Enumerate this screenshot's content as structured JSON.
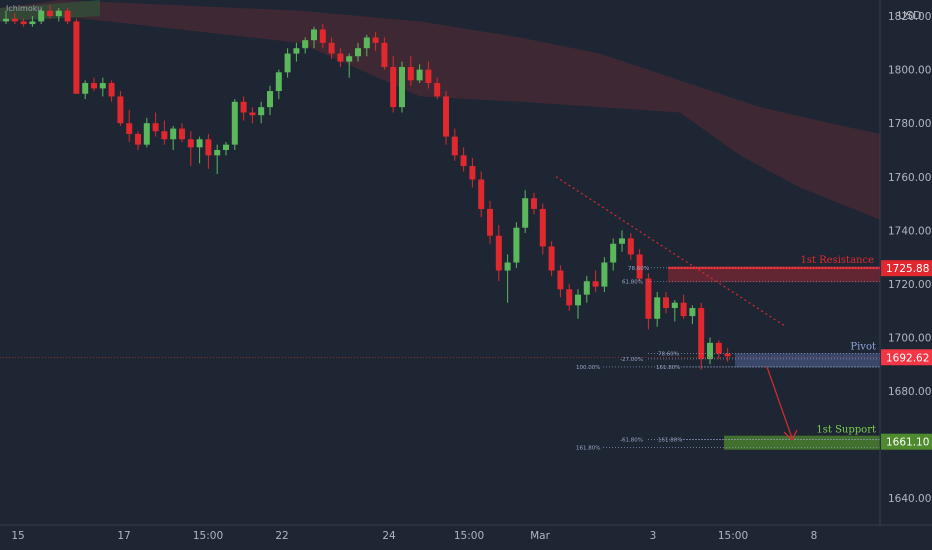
{
  "indicator_label": "Ichimoku",
  "chart_data": {
    "type": "candlestick",
    "currency": "USD",
    "ylim": [
      1630,
      1826
    ],
    "y_ticks": [
      1640,
      1660,
      1680,
      1700,
      1720,
      1740,
      1760,
      1780,
      1800,
      1820
    ],
    "x_ticks": [
      "15",
      "17",
      "15:00",
      "22",
      "24",
      "15:00",
      "Mar",
      "3",
      "15:00",
      "8"
    ],
    "candles": [
      [
        1818,
        1822,
        1817,
        1819
      ],
      [
        1819,
        1821,
        1817,
        1818
      ],
      [
        1818,
        1819,
        1816,
        1817
      ],
      [
        1817,
        1820,
        1816,
        1818
      ],
      [
        1818,
        1823,
        1817,
        1822
      ],
      [
        1822,
        1824,
        1819,
        1820
      ],
      [
        1820,
        1823,
        1818,
        1822
      ],
      [
        1822,
        1823,
        1817,
        1818
      ],
      [
        1818,
        1819,
        1791,
        1791
      ],
      [
        1791,
        1796,
        1789,
        1795
      ],
      [
        1795,
        1797,
        1792,
        1793
      ],
      [
        1793,
        1797,
        1790,
        1795
      ],
      [
        1795,
        1796,
        1788,
        1790
      ],
      [
        1790,
        1792,
        1779,
        1780
      ],
      [
        1780,
        1785,
        1773,
        1776
      ],
      [
        1776,
        1777,
        1770,
        1772
      ],
      [
        1772,
        1782,
        1771,
        1780
      ],
      [
        1780,
        1784,
        1775,
        1777
      ],
      [
        1777,
        1781,
        1772,
        1774
      ],
      [
        1774,
        1779,
        1770,
        1778
      ],
      [
        1778,
        1780,
        1773,
        1774
      ],
      [
        1774,
        1777,
        1764,
        1771
      ],
      [
        1771,
        1775,
        1765,
        1774
      ],
      [
        1774,
        1776,
        1763,
        1768
      ],
      [
        1768,
        1772,
        1761,
        1770
      ],
      [
        1770,
        1773,
        1768,
        1772
      ],
      [
        1772,
        1789,
        1770,
        1788
      ],
      [
        1788,
        1790,
        1781,
        1784
      ],
      [
        1784,
        1786,
        1780,
        1783
      ],
      [
        1783,
        1788,
        1780,
        1786
      ],
      [
        1786,
        1794,
        1783,
        1792
      ],
      [
        1792,
        1800,
        1789,
        1799
      ],
      [
        1799,
        1808,
        1797,
        1806
      ],
      [
        1806,
        1810,
        1803,
        1808
      ],
      [
        1808,
        1812,
        1806,
        1811
      ],
      [
        1811,
        1816,
        1808,
        1815
      ],
      [
        1815,
        1817,
        1808,
        1810
      ],
      [
        1810,
        1812,
        1804,
        1806
      ],
      [
        1806,
        1808,
        1801,
        1803
      ],
      [
        1803,
        1806,
        1797,
        1805
      ],
      [
        1805,
        1810,
        1803,
        1808
      ],
      [
        1808,
        1813,
        1805,
        1812
      ],
      [
        1812,
        1814,
        1807,
        1810
      ],
      [
        1810,
        1812,
        1800,
        1801
      ],
      [
        1801,
        1805,
        1784,
        1786
      ],
      [
        1786,
        1803,
        1784,
        1801
      ],
      [
        1801,
        1805,
        1794,
        1796
      ],
      [
        1796,
        1802,
        1795,
        1800
      ],
      [
        1800,
        1803,
        1793,
        1795
      ],
      [
        1795,
        1797,
        1789,
        1790
      ],
      [
        1790,
        1792,
        1772,
        1775
      ],
      [
        1775,
        1778,
        1766,
        1768
      ],
      [
        1768,
        1771,
        1762,
        1764
      ],
      [
        1764,
        1767,
        1756,
        1759
      ],
      [
        1759,
        1762,
        1745,
        1748
      ],
      [
        1748,
        1751,
        1735,
        1738
      ],
      [
        1738,
        1742,
        1721,
        1725
      ],
      [
        1725,
        1731,
        1713,
        1728
      ],
      [
        1728,
        1743,
        1726,
        1741
      ],
      [
        1741,
        1755,
        1739,
        1752
      ],
      [
        1752,
        1754,
        1746,
        1748
      ],
      [
        1748,
        1750,
        1731,
        1734
      ],
      [
        1734,
        1736,
        1723,
        1725
      ],
      [
        1725,
        1727,
        1715,
        1718
      ],
      [
        1718,
        1720,
        1710,
        1712
      ],
      [
        1712,
        1718,
        1707,
        1716
      ],
      [
        1716,
        1723,
        1713,
        1721
      ],
      [
        1721,
        1725,
        1717,
        1719
      ],
      [
        1719,
        1730,
        1717,
        1728
      ],
      [
        1728,
        1737,
        1725,
        1735
      ],
      [
        1735,
        1740,
        1732,
        1737
      ],
      [
        1737,
        1739,
        1729,
        1731
      ],
      [
        1731,
        1733,
        1721,
        1722
      ],
      [
        1722,
        1724,
        1703,
        1707
      ],
      [
        1707,
        1717,
        1704,
        1715
      ],
      [
        1715,
        1717,
        1709,
        1711
      ],
      [
        1711,
        1714,
        1706,
        1713
      ],
      [
        1713,
        1716,
        1707,
        1708
      ],
      [
        1708,
        1712,
        1705,
        1711
      ],
      [
        1711,
        1713,
        1688,
        1692
      ],
      [
        1692,
        1700,
        1690,
        1698
      ],
      [
        1698,
        1699,
        1692,
        1694
      ],
      [
        1694,
        1696,
        1691,
        1693
      ]
    ],
    "levels": [
      {
        "name": "1st Resistance",
        "value": 1725.88,
        "label": "1725.88"
      },
      {
        "name": "Pivot",
        "value": 1692.62,
        "label": "1692.62"
      },
      {
        "name": "1st Support",
        "value": 1661.1,
        "label": "1661.10"
      }
    ],
    "fib_labels": [
      {
        "text": "78.60%",
        "y": 1726
      },
      {
        "text": "61.80%",
        "y": 1721
      },
      {
        "text": "78.60%",
        "y": 1694
      },
      {
        "text": "-27.00%",
        "y": 1692
      },
      {
        "text": "100.00%",
        "y": 1689
      },
      {
        "text": "161.80%",
        "y": 1689
      },
      {
        "text": "-61.80%",
        "y": 1662
      },
      {
        "text": "161.80%",
        "y": 1662
      },
      {
        "text": "161.80%",
        "y": 1659
      }
    ],
    "trendline": {
      "from": [
        1760,
        1760
      ],
      "to": [
        1704,
        1704
      ]
    },
    "forecast_arrow": {
      "from": 1692,
      "to": 1661
    }
  },
  "colors": {
    "background": "#1e2634",
    "bull": "#5cb85c",
    "bear": "#e0282e",
    "resistance": "#e0282e",
    "pivot": "#6f86cc",
    "support": "#4f8a2e",
    "axis_text": "#b2b5be"
  }
}
